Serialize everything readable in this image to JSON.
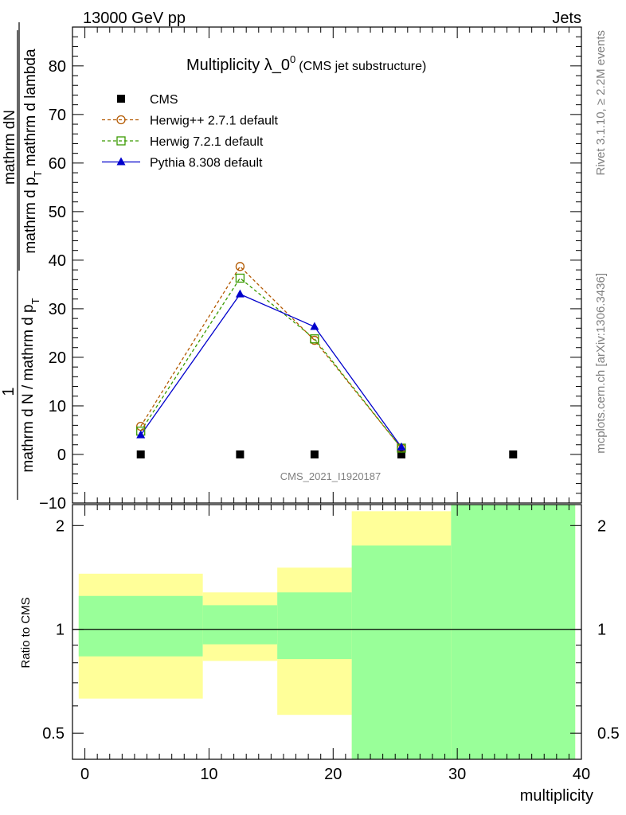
{
  "header": {
    "left": "13000 GeV pp",
    "right": "Jets"
  },
  "side_labels": {
    "top": "Rivet 3.1.10, ≥ 2.2M events",
    "bottom": "mcplots.cern.ch [arXiv:1306.3436]"
  },
  "watermark": "CMS_2021_I1920187",
  "chart_data": {
    "type": "line",
    "title": "Multiplicity λ_0",
    "title_sup": "0",
    "subtitle": "(CMS jet substructure)",
    "xlabel": "multiplicity",
    "ylabel_top_numerator": "1",
    "ylabel_top_denominator": "mathrm d N / mathrm d p",
    "ylabel_top_denominator_sub": "T",
    "ylabel_top_fraction_num": "mathrm dN",
    "ylabel_top_fraction_den": "mathrm d p",
    "ylabel_top_fraction_den_sub": "T",
    "ylabel_top_fraction_den_rest": " mathrm d lambda",
    "ylabel_ratio": "Ratio to CMS",
    "xlim": [
      -1,
      40
    ],
    "ylim": [
      -10,
      88
    ],
    "ratio_ylim": [
      0.42,
      2.3
    ],
    "ratio_scale": "log",
    "x_ticks": [
      0,
      10,
      20,
      30,
      40
    ],
    "y_ticks": [
      -10,
      0,
      10,
      20,
      30,
      40,
      50,
      60,
      70,
      80
    ],
    "ratio_ticks": [
      0.5,
      1,
      2
    ],
    "legend_position": "top-left",
    "series": [
      {
        "name": "CMS",
        "style": "data",
        "color": "#000000",
        "x": [
          4.5,
          12.5,
          18.5,
          25.5,
          34.5
        ],
        "y": [
          0,
          0,
          0,
          0,
          0
        ]
      },
      {
        "name": "Herwig++ 2.7.1 default",
        "style": "dashed-circle",
        "color": "#b35900",
        "x": [
          4.5,
          12.5,
          18.5,
          25.5
        ],
        "y": [
          5.8,
          38.7,
          23.5,
          1.3
        ]
      },
      {
        "name": "Herwig 7.2.1 default",
        "style": "dashed-square",
        "color": "#3a9a00",
        "x": [
          4.5,
          12.5,
          18.5,
          25.5
        ],
        "y": [
          4.8,
          36.3,
          23.8,
          1.3
        ]
      },
      {
        "name": "Pythia 8.308 default",
        "style": "solid-triangle",
        "color": "#0000cc",
        "x": [
          4.5,
          12.5,
          18.5,
          25.5
        ],
        "y": [
          4.0,
          33.0,
          26.3,
          1.5
        ]
      }
    ],
    "ratio_bands": {
      "colors": {
        "outer": "#ffff99",
        "inner": "#99ff99"
      },
      "bins": [
        {
          "x0": -0.5,
          "x1": 9.5,
          "outer": [
            0.63,
            1.45
          ],
          "inner": [
            0.835,
            1.25
          ]
        },
        {
          "x0": 9.5,
          "x1": 15.5,
          "outer": [
            0.81,
            1.28
          ],
          "inner": [
            0.905,
            1.175
          ]
        },
        {
          "x0": 15.5,
          "x1": 21.5,
          "outer": [
            0.565,
            1.51
          ],
          "inner": [
            0.82,
            1.28
          ]
        },
        {
          "x0": 21.5,
          "x1": 29.5,
          "outer": [
            0.42,
            2.2
          ],
          "inner": [
            0.42,
            1.75
          ]
        },
        {
          "x0": 29.5,
          "x1": 39.5,
          "outer": [
            0.42,
            2.3
          ],
          "inner": [
            0.42,
            2.3
          ]
        }
      ]
    }
  }
}
